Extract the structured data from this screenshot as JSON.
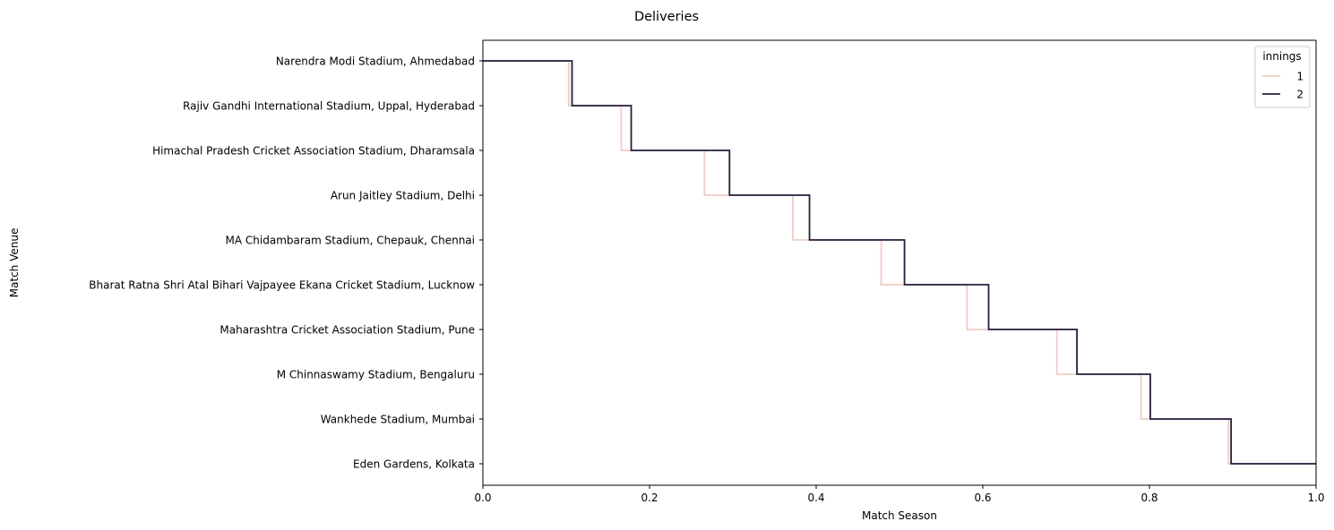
{
  "chart_data": {
    "type": "line",
    "style": "ecdf-step",
    "title": "Deliveries",
    "xlabel": "Match Season",
    "ylabel": "Match Venue",
    "xlim": [
      0,
      1
    ],
    "x_ticks": [
      "0.0",
      "0.2",
      "0.4",
      "0.6",
      "0.8",
      "1.0"
    ],
    "categories": [
      "Narendra Modi Stadium, Ahmedabad",
      "Rajiv Gandhi International Stadium, Uppal, Hyderabad",
      "Himachal Pradesh Cricket Association Stadium, Dharamsala",
      "Arun Jaitley Stadium, Delhi",
      "MA Chidambaram Stadium, Chepauk, Chennai",
      "Bharat Ratna Shri Atal Bihari Vajpayee Ekana Cricket Stadium, Lucknow",
      "Maharashtra Cricket Association Stadium, Pune",
      "M Chinnaswamy Stadium, Bengaluru",
      "Wankhede Stadium, Mumbai",
      "Eden Gardens, Kolkata"
    ],
    "legend": {
      "title": "innings",
      "placement": "top-right"
    },
    "grid": false,
    "series": [
      {
        "name": "1",
        "color": "#f0ccc6",
        "values": [
          0.103,
          0.166,
          0.266,
          0.372,
          0.478,
          0.581,
          0.689,
          0.79,
          0.895,
          1.0
        ]
      },
      {
        "name": "2",
        "color": "#241f3d",
        "values": [
          0.107,
          0.178,
          0.296,
          0.392,
          0.506,
          0.607,
          0.713,
          0.801,
          0.898,
          1.0
        ]
      }
    ]
  }
}
